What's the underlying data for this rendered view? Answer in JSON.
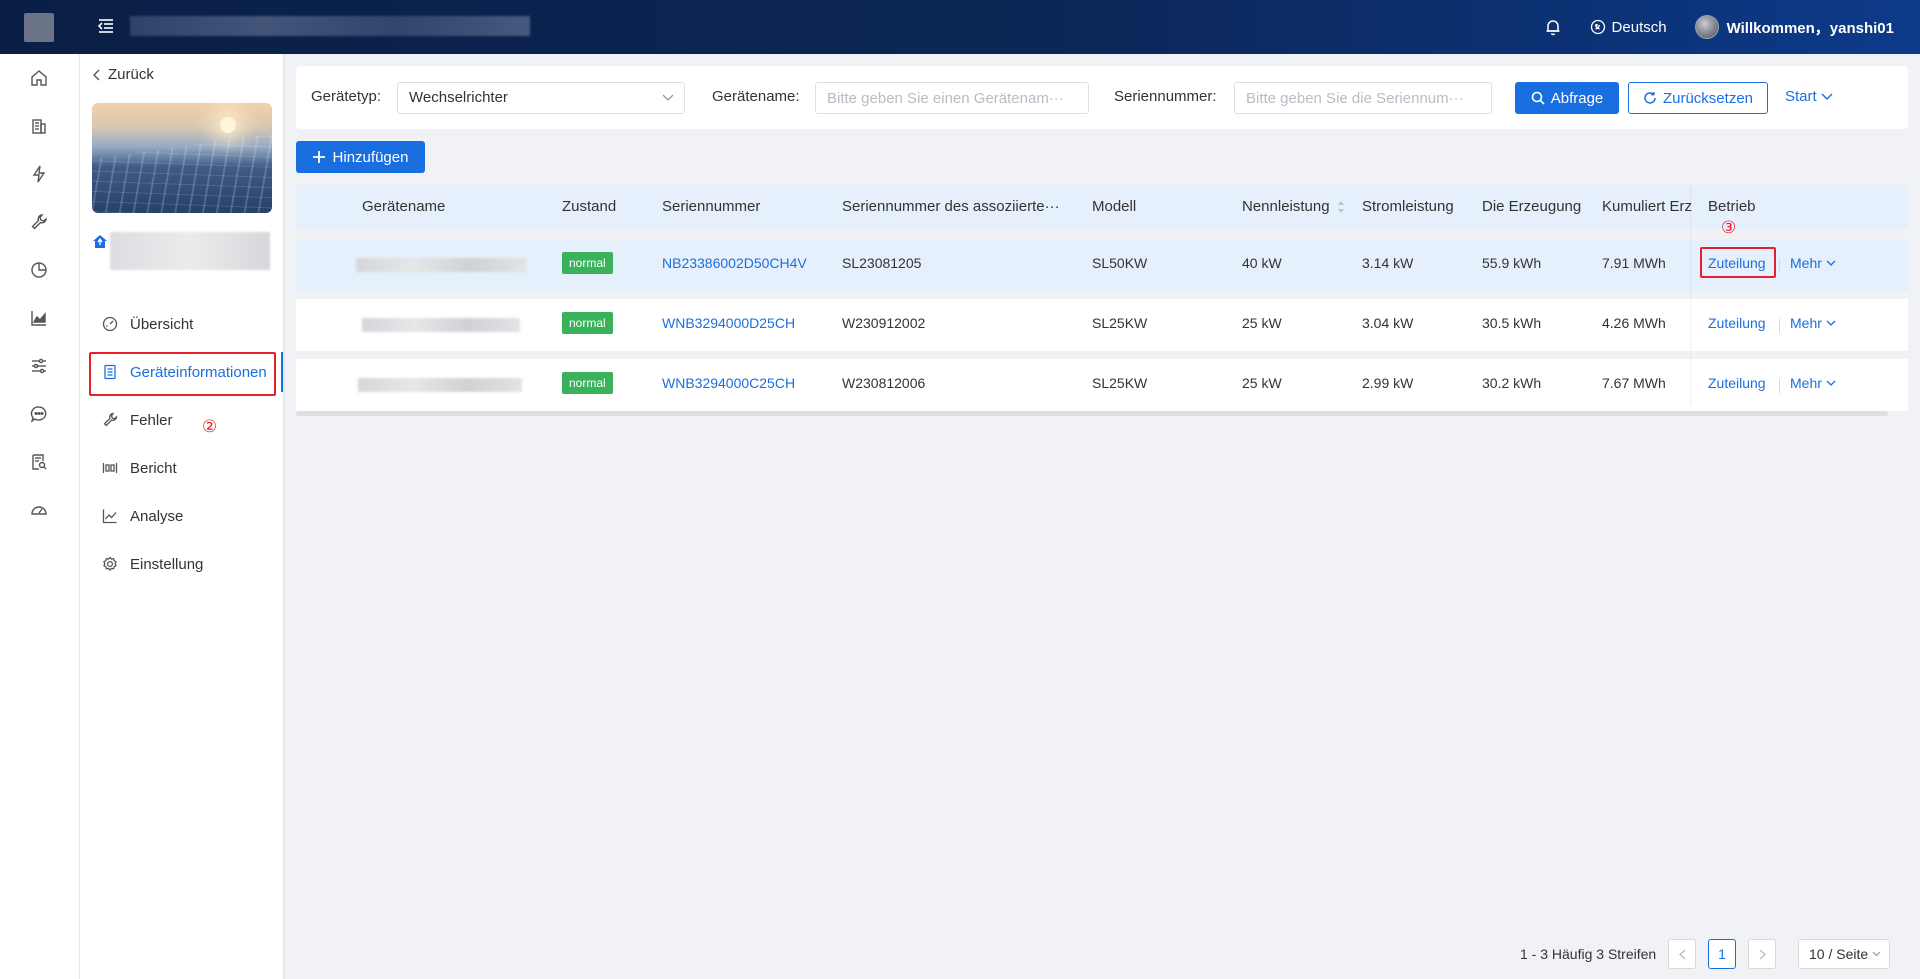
{
  "header": {
    "language": "Deutsch",
    "welcome": "Willkommen，yanshi01"
  },
  "sidebar": {
    "back_label": "Zurück",
    "items": [
      {
        "label": "Übersicht",
        "icon": "dashboard-icon"
      },
      {
        "label": "Geräteinformationen",
        "icon": "device-list-icon",
        "active": true
      },
      {
        "label": "Fehler",
        "icon": "wrench-icon"
      },
      {
        "label": "Bericht",
        "icon": "report-icon"
      },
      {
        "label": "Analyse",
        "icon": "line-chart-icon"
      },
      {
        "label": "Einstellung",
        "icon": "gear-icon"
      }
    ],
    "annotation_2": "②"
  },
  "rail_icons": [
    "home-icon",
    "building-icon",
    "lightning-icon",
    "wrench-icon",
    "pie-chart-icon",
    "bar-chart-icon",
    "sliders-icon",
    "chat-icon",
    "document-search-icon",
    "gauge-icon"
  ],
  "filter": {
    "device_type_label": "Gerätetyp:",
    "device_type_value": "Wechselrichter",
    "device_name_label": "Gerätename:",
    "device_name_placeholder": "Bitte geben Sie einen Gerätenam···",
    "serial_label": "Seriennummer:",
    "serial_placeholder": "Bitte geben Sie die Seriennum···",
    "query_button": "Abfrage",
    "reset_button": "Zurücksetzen",
    "expand_label": "Start"
  },
  "toolbar": {
    "add_button": "Hinzufügen"
  },
  "table": {
    "columns": [
      "Gerätename",
      "Zustand",
      "Seriennummer",
      "Seriennummer des assoziierte···",
      "Modell",
      "Nennleistung",
      "Stromleistung",
      "Die Erzeugung",
      "Kumuliert Erz",
      "Betrieb"
    ],
    "rows": [
      {
        "status": "normal",
        "serial": "NB23386002D50CH4V",
        "assoc_serial": "SL23081205",
        "model": "SL50KW",
        "rated": "40 kW",
        "power": "3.14 kW",
        "generation": "55.9 kWh",
        "cumulative": "7.91 MWh",
        "op1": "Zuteilung",
        "op2": "Mehr"
      },
      {
        "status": "normal",
        "serial": "WNB3294000D25CH",
        "assoc_serial": "W230912002",
        "model": "SL25KW",
        "rated": "25 kW",
        "power": "3.04 kW",
        "generation": "30.5 kWh",
        "cumulative": "4.26 MWh",
        "op1": "Zuteilung",
        "op2": "Mehr"
      },
      {
        "status": "normal",
        "serial": "WNB3294000C25CH",
        "assoc_serial": "W230812006",
        "model": "SL25KW",
        "rated": "25 kW",
        "power": "2.99 kW",
        "generation": "30.2 kWh",
        "cumulative": "7.67 MWh",
        "op1": "Zuteilung",
        "op2": "Mehr"
      }
    ],
    "annotation_3": "③"
  },
  "pagination": {
    "total": "1 - 3 Häufig 3 Streifen",
    "current_page": "1",
    "page_size": "10 / Seite"
  },
  "colors": {
    "accent": "#1a6fe0",
    "status_normal": "#3ab15b",
    "annotation": "#e5202a",
    "header_bg": "#0b2656"
  }
}
